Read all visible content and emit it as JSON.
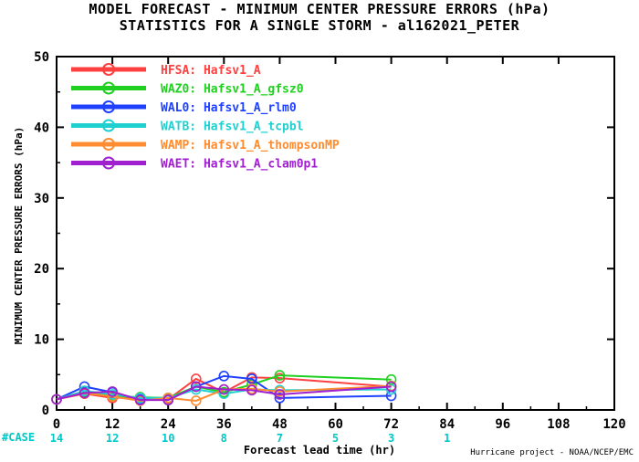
{
  "title_line1": "MODEL FORECAST - MINIMUM CENTER PRESSURE ERRORS (hPa)",
  "title_line2": "STATISTICS FOR A SINGLE STORM - al162021_PETER",
  "footer": "Hurricane project - NOAA/NCEP/EMC",
  "case_label": "#CASE",
  "chart_data": {
    "type": "line",
    "xlabel": "Forecast lead time (hr)",
    "ylabel": "MINIMUM CENTER PRESSURE ERRORS (hPa)",
    "xlim": [
      0,
      120
    ],
    "ylim": [
      0,
      50
    ],
    "x_ticks": [
      0,
      12,
      24,
      36,
      48,
      60,
      72,
      84,
      96,
      108,
      120
    ],
    "y_ticks": [
      0,
      10,
      20,
      30,
      40,
      50
    ],
    "legend_position": "top-left",
    "case_counts": [
      {
        "x": 0,
        "n": "14"
      },
      {
        "x": 12,
        "n": "12"
      },
      {
        "x": 24,
        "n": "10"
      },
      {
        "x": 36,
        "n": "8"
      },
      {
        "x": 48,
        "n": "7"
      },
      {
        "x": 60,
        "n": "5"
      },
      {
        "x": 72,
        "n": "3"
      },
      {
        "x": 84,
        "n": "1"
      }
    ],
    "series": [
      {
        "name": "HFSA: Hafsv1_A",
        "color": "#ff4040",
        "x": [
          0,
          6,
          12,
          18,
          24,
          30,
          36,
          42,
          48,
          72
        ],
        "y": [
          1.5,
          2.3,
          1.7,
          1.8,
          1.5,
          4.4,
          2.5,
          4.6,
          4.5,
          3.3
        ]
      },
      {
        "name": "WAZ0: Hafsv1_A_gfsz0",
        "color": "#20d020",
        "x": [
          0,
          6,
          12,
          18,
          24,
          30,
          36,
          42,
          48,
          72
        ],
        "y": [
          1.5,
          2.6,
          2.0,
          1.8,
          1.7,
          3.3,
          2.5,
          3.6,
          4.9,
          4.3
        ]
      },
      {
        "name": "WAL0: Hafsv1_A_rlm0",
        "color": "#2040ff",
        "x": [
          0,
          6,
          12,
          18,
          24,
          30,
          36,
          42,
          48,
          72
        ],
        "y": [
          1.5,
          3.3,
          2.5,
          1.5,
          1.4,
          3.3,
          4.8,
          4.4,
          1.7,
          2.0
        ]
      },
      {
        "name": "WATB: Hafsv1_A_tcpbl",
        "color": "#20d0d0",
        "x": [
          0,
          6,
          12,
          18,
          24,
          30,
          36,
          42,
          48,
          72
        ],
        "y": [
          1.5,
          2.7,
          2.2,
          1.7,
          1.7,
          2.9,
          2.3,
          2.9,
          2.8,
          2.9
        ]
      },
      {
        "name": "WAMP: Hafsv1_A_thompsonMP",
        "color": "#ff8c30",
        "x": [
          0,
          6,
          12,
          18,
          24,
          30,
          36,
          42,
          48,
          72
        ],
        "y": [
          1.5,
          2.4,
          1.9,
          1.3,
          1.7,
          1.3,
          2.9,
          3.0,
          2.6,
          3.4
        ]
      },
      {
        "name": "WAET: Hafsv1_A_clam0p1",
        "color": "#a020d0",
        "x": [
          0,
          6,
          12,
          18,
          24,
          30,
          36,
          42,
          48,
          72
        ],
        "y": [
          1.5,
          2.4,
          2.6,
          1.4,
          1.4,
          3.3,
          2.9,
          2.8,
          2.2,
          3.3
        ]
      }
    ]
  }
}
